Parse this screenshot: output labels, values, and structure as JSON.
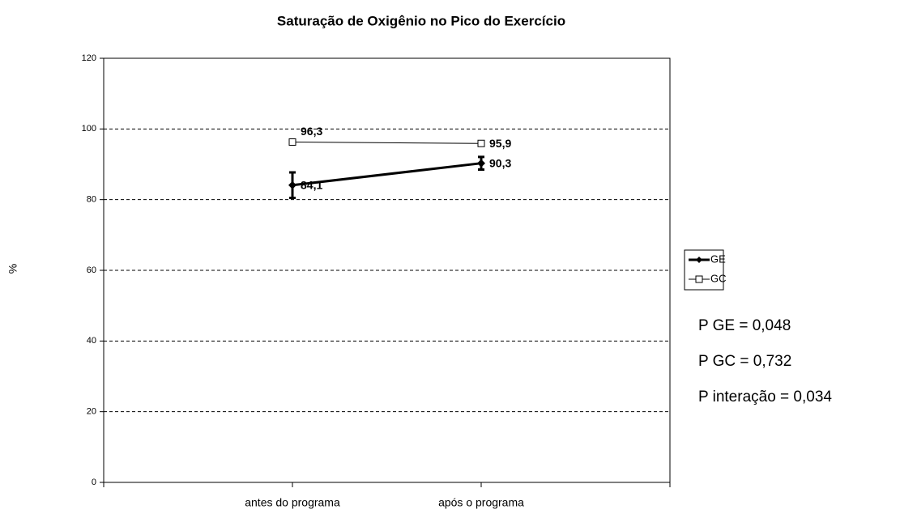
{
  "chart_data": {
    "type": "line",
    "title": "Saturação de Oxigênio no Pico do Exercício",
    "y_label": "%",
    "categories": [
      null,
      "antes do programa",
      "após o programa",
      null
    ],
    "series": [
      {
        "name": "GE",
        "color": "#000000",
        "values": [
          null,
          84.1,
          90.3,
          null
        ],
        "value_labels": [
          null,
          "84,1",
          "90,3",
          null
        ],
        "errors": [
          null,
          3.6,
          1.8,
          null
        ]
      },
      {
        "name": "GC",
        "color": "#000000",
        "values": [
          null,
          96.3,
          95.9,
          null
        ],
        "value_labels": [
          null,
          "96,3",
          "95,9",
          null
        ]
      }
    ],
    "ylim": [
      0,
      120
    ],
    "yticks": [
      0,
      20,
      40,
      60,
      80,
      100,
      120
    ],
    "grid": true,
    "legend": "right",
    "annotations": [
      "P GE = 0,048",
      "P GC = 0,732",
      "P interação = 0,034"
    ]
  }
}
